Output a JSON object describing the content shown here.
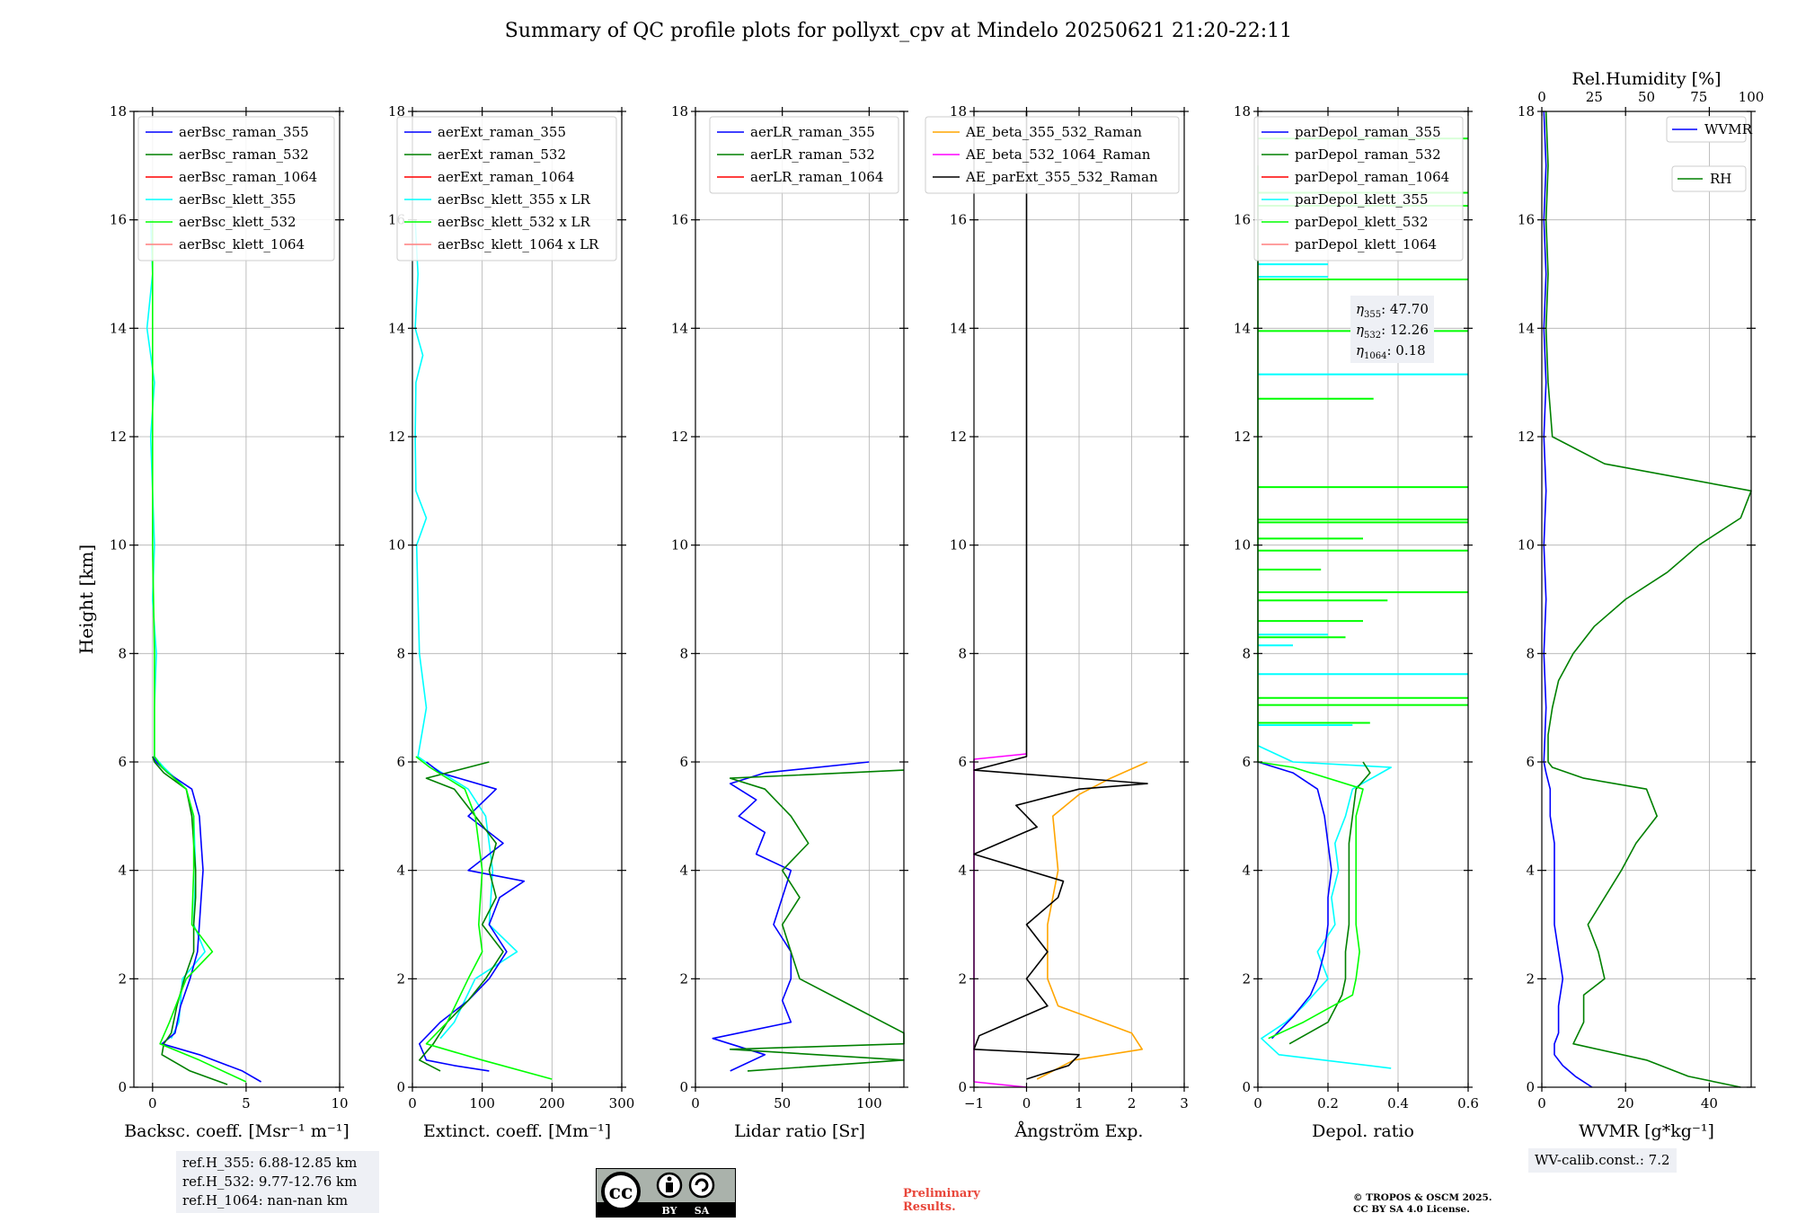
{
  "title": "Summary of QC profile plots for pollyxt_cpv at Mindelo 20250621 21:20-22:11",
  "ylabel": "Height [km]",
  "yticks": [
    0,
    2,
    4,
    6,
    8,
    10,
    12,
    14,
    16,
    18
  ],
  "colors": {
    "c355_raman": "#0000ff",
    "c532_raman": "#008000",
    "c1064_raman": "#ff0000",
    "c355_klett": "#00ffff",
    "c532_klett": "#00ff00",
    "c1064_klett": "#ff7f7f",
    "ae_beta_355_532": "#ffa500",
    "ae_beta_532_1064": "#ff00ff",
    "ae_parext": "#000000",
    "box_bg": "#eef0f5",
    "prelim": "#e8463a"
  },
  "chart_data": [
    {
      "type": "line",
      "xlabel": "Backsc. coeff. [Msr⁻¹ m⁻¹]",
      "xlim": [
        -1,
        10
      ],
      "xticks": [
        0,
        5,
        10
      ],
      "ylim": [
        0,
        18
      ],
      "legend": [
        "aerBsc_raman_355",
        "aerBsc_raman_532",
        "aerBsc_raman_1064",
        "aerBsc_klett_355",
        "aerBsc_klett_532",
        "aerBsc_klett_1064"
      ],
      "legend_placement": "top-right",
      "series": [
        {
          "name": "aerBsc_klett_355",
          "color": "c355_klett",
          "y": [
            0.9,
            1.2,
            2.0,
            2.5,
            3.0,
            4.0,
            5.0,
            5.5,
            5.9,
            6.1,
            7,
            8,
            9,
            10,
            11,
            12,
            13,
            14,
            15,
            16
          ],
          "x": [
            1.0,
            1.4,
            1.6,
            2.8,
            2.2,
            2.3,
            2.2,
            1.8,
            0.6,
            0.1,
            0.1,
            0.2,
            0.0,
            0.1,
            0.0,
            -0.1,
            0.1,
            -0.3,
            0.0,
            -0.1
          ]
        },
        {
          "name": "aerBsc_raman_355",
          "color": "c355_raman",
          "y": [
            0.1,
            0.3,
            0.6,
            0.8,
            1.0,
            1.5,
            2.0,
            2.5,
            3.0,
            3.5,
            4.0,
            4.5,
            5.0,
            5.5,
            5.8,
            6.0,
            6.1
          ],
          "x": [
            5.8,
            4.8,
            2.5,
            0.5,
            1.2,
            1.5,
            2.0,
            2.4,
            2.5,
            2.6,
            2.7,
            2.6,
            2.5,
            2.1,
            0.8,
            0.2,
            0.0
          ]
        },
        {
          "name": "aerBsc_raman_532",
          "color": "c532_raman",
          "y": [
            0.05,
            0.3,
            0.6,
            0.8,
            1.0,
            1.5,
            2.0,
            2.5,
            3.0,
            3.5,
            4.0,
            4.5,
            5.0,
            5.5,
            5.8,
            6.0,
            6.1
          ],
          "x": [
            4.0,
            2.0,
            0.5,
            0.6,
            1.0,
            1.3,
            1.7,
            2.2,
            2.2,
            2.3,
            2.3,
            2.2,
            2.1,
            1.8,
            0.6,
            0.1,
            0.0
          ]
        },
        {
          "name": "aerBsc_klett_532",
          "color": "c532_klett",
          "y": [
            0.1,
            0.5,
            0.8,
            1.2,
            2.0,
            2.5,
            3.0,
            4.0,
            5.0,
            5.5,
            5.9,
            6.1,
            8,
            10,
            12,
            14,
            16
          ],
          "x": [
            5.0,
            2.5,
            0.4,
            0.9,
            1.8,
            3.2,
            2.1,
            2.2,
            2.2,
            1.8,
            0.5,
            0.1,
            0.1,
            0.0,
            0.0,
            0.0,
            0.0
          ]
        }
      ]
    },
    {
      "type": "line",
      "xlabel": "Extinct. coeff. [Mm⁻¹]",
      "xlim": [
        0,
        300
      ],
      "xticks": [
        0,
        100,
        200,
        300
      ],
      "ylim": [
        0,
        18
      ],
      "legend": [
        "aerExt_raman_355",
        "aerExt_raman_532",
        "aerExt_raman_1064",
        "aerBsc_klett_355 x LR",
        "aerBsc_klett_532 x LR",
        "aerBsc_klett_1064 x LR"
      ],
      "legend_placement": "top-right",
      "series": [
        {
          "name": "aerBsc_klett_355 x LR",
          "color": "c355_klett",
          "y": [
            0.9,
            1.2,
            2.0,
            2.5,
            3.0,
            4.0,
            5.0,
            5.5,
            5.9,
            6.1,
            7,
            8,
            9,
            10,
            10.5,
            11,
            12,
            13,
            13.5,
            14,
            15,
            16
          ],
          "x": [
            40,
            60,
            90,
            150,
            110,
            115,
            105,
            80,
            30,
            8,
            20,
            10,
            8,
            6,
            20,
            5,
            4,
            5,
            15,
            4,
            8,
            4
          ]
        },
        {
          "name": "aerExt_raman_355",
          "color": "c355_raman",
          "y": [
            0.3,
            0.4,
            0.5,
            0.8,
            1.2,
            1.6,
            2.0,
            2.5,
            3.0,
            3.5,
            3.8,
            4.0,
            4.5,
            5.0,
            5.5,
            5.8,
            6.0
          ],
          "x": [
            110,
            60,
            20,
            10,
            40,
            80,
            110,
            135,
            110,
            125,
            160,
            80,
            130,
            80,
            120,
            40,
            20
          ]
        },
        {
          "name": "aerExt_raman_532",
          "color": "c532_raman",
          "y": [
            0.3,
            0.5,
            0.8,
            1.2,
            1.6,
            2.0,
            2.5,
            3.0,
            3.5,
            4.0,
            4.5,
            5.0,
            5.5,
            5.7,
            6.0
          ],
          "x": [
            40,
            10,
            30,
            50,
            80,
            105,
            130,
            100,
            120,
            110,
            120,
            90,
            60,
            20,
            110
          ]
        },
        {
          "name": "aerBsc_klett_532 x LR",
          "color": "c532_klett",
          "y": [
            0.15,
            0.5,
            0.8,
            1.2,
            2.0,
            2.5,
            3.0,
            4.0,
            5.0,
            5.5,
            5.9,
            6.1
          ],
          "x": [
            200,
            100,
            20,
            50,
            80,
            100,
            95,
            100,
            90,
            75,
            25,
            5
          ]
        }
      ]
    },
    {
      "type": "line",
      "xlabel": "Lidar ratio [Sr]",
      "xlim": [
        0,
        120
      ],
      "xticks": [
        0,
        50,
        100
      ],
      "ylim": [
        0,
        18
      ],
      "legend": [
        "aerLR_raman_355",
        "aerLR_raman_532",
        "aerLR_raman_1064"
      ],
      "legend_placement": "top-right",
      "series": [
        {
          "name": "aerLR_raman_355",
          "color": "c355_raman",
          "y": [
            0.3,
            0.6,
            0.9,
            1.2,
            1.6,
            2.0,
            2.5,
            3.0,
            3.5,
            4.0,
            4.3,
            4.7,
            5.0,
            5.3,
            5.6,
            5.8,
            6.0
          ],
          "x": [
            20,
            40,
            10,
            55,
            50,
            55,
            55,
            45,
            50,
            55,
            35,
            40,
            25,
            35,
            20,
            40,
            100
          ]
        },
        {
          "name": "aerLR_raman_532",
          "color": "c532_raman",
          "y": [
            0.3,
            0.5,
            0.7,
            0.8,
            1.0,
            1.5,
            2.0,
            2.5,
            3.0,
            3.5,
            4.0,
            4.5,
            5.0,
            5.5,
            5.7,
            5.85
          ],
          "x": [
            30,
            120,
            20,
            120,
            120,
            90,
            60,
            55,
            50,
            60,
            50,
            65,
            55,
            40,
            20,
            120
          ]
        }
      ]
    },
    {
      "type": "line",
      "xlabel": "Ångström Exp.",
      "xlim": [
        -1,
        3
      ],
      "xticks": [
        -1,
        0,
        1,
        2,
        3
      ],
      "ylim": [
        0,
        18
      ],
      "legend": [
        "AE_beta_355_532_Raman",
        "AE_beta_532_1064_Raman",
        "AE_parExt_355_532_Raman"
      ],
      "legend_placement": "top-right",
      "series": [
        {
          "name": "AE_beta_355_532_Raman",
          "color": "ae_beta_355_532",
          "y": [
            0.15,
            0.5,
            0.7,
            1.0,
            1.5,
            2.0,
            3.0,
            4.0,
            5.0,
            5.4,
            5.7,
            6.0
          ],
          "x": [
            0.2,
            0.9,
            2.2,
            2.0,
            0.6,
            0.4,
            0.4,
            0.6,
            0.5,
            1.0,
            1.6,
            2.3
          ]
        },
        {
          "name": "AE_beta_532_1064_Raman",
          "color": "ae_beta_532_1064",
          "y": [
            0.0,
            0.1,
            6.05,
            6.15
          ],
          "x": [
            0.0,
            -1.0,
            -1.0,
            0.0
          ]
        },
        {
          "name": "AE_parExt_355_532_Raman",
          "color": "ae_parext",
          "y": [
            0.15,
            0.4,
            0.6,
            0.7,
            0.95,
            1.5,
            2.0,
            2.5,
            3.0,
            3.5,
            3.8,
            4.3,
            4.8,
            5.2,
            5.5,
            5.6,
            5.85,
            6.1,
            18
          ],
          "x": [
            0.0,
            0.8,
            1.0,
            -1.0,
            -0.9,
            0.4,
            0.0,
            0.4,
            0.0,
            0.6,
            0.7,
            -1.0,
            0.2,
            -0.2,
            1.0,
            2.3,
            -1.0,
            0.0,
            0.0
          ]
        }
      ]
    },
    {
      "type": "line",
      "xlabel": "Depol. ratio",
      "xlim": [
        0,
        0.6
      ],
      "xticks": [
        0,
        0.2,
        0.4,
        0.6
      ],
      "ylim": [
        0,
        18
      ],
      "legend": [
        "parDepol_raman_355",
        "parDepol_raman_532",
        "parDepol_raman_1064",
        "parDepol_klett_355",
        "parDepol_klett_532",
        "parDepol_klett_1064"
      ],
      "legend_placement": "top-right",
      "annotations": [
        {
          "symbol": "η",
          "sub": "355",
          "value": "47.70"
        },
        {
          "symbol": "η",
          "sub": "532",
          "value": "12.26"
        },
        {
          "symbol": "η",
          "sub": "1064",
          "value": "0.18"
        }
      ],
      "series": [
        {
          "name": "parDepol_klett_355",
          "color": "c355_klett",
          "y": [
            0.35,
            0.6,
            0.9,
            1.2,
            1.5,
            2.0,
            2.5,
            3.0,
            3.5,
            4.0,
            4.5,
            5.0,
            5.5,
            5.9,
            6.0,
            6.3
          ],
          "x": [
            0.38,
            0.06,
            0.01,
            0.08,
            0.13,
            0.2,
            0.17,
            0.22,
            0.21,
            0.23,
            0.22,
            0.25,
            0.27,
            0.38,
            0.1,
            0.0
          ]
        },
        {
          "name": "parDepol_raman_355",
          "color": "c355_raman",
          "y": [
            0.9,
            1.3,
            1.7,
            2.0,
            2.5,
            3.0,
            3.5,
            4.0,
            4.5,
            5.0,
            5.5,
            5.8,
            6.0
          ],
          "x": [
            0.04,
            0.1,
            0.15,
            0.17,
            0.19,
            0.2,
            0.2,
            0.21,
            0.2,
            0.19,
            0.17,
            0.1,
            0.0
          ]
        },
        {
          "name": "parDepol_raman_532",
          "color": "c532_raman",
          "y": [
            0.8,
            1.2,
            1.7,
            2.0,
            2.5,
            3.0,
            3.5,
            4.0,
            4.5,
            5.0,
            5.5,
            5.8,
            6.0
          ],
          "x": [
            0.09,
            0.2,
            0.24,
            0.25,
            0.25,
            0.26,
            0.26,
            0.26,
            0.26,
            0.27,
            0.28,
            0.32,
            0.3
          ]
        },
        {
          "name": "parDepol_klett_532",
          "color": "c532_klett",
          "y": [
            0.9,
            1.2,
            1.7,
            2.0,
            2.5,
            3.0,
            3.5,
            4.0,
            4.5,
            5.0,
            5.5,
            5.9,
            6.0,
            6.5,
            7,
            8,
            9,
            10,
            11,
            12,
            13,
            14,
            15,
            16,
            17
          ],
          "x": [
            0.03,
            0.13,
            0.27,
            0.28,
            0.29,
            0.28,
            0.28,
            0.28,
            0.28,
            0.28,
            0.3,
            0.1,
            0.0,
            0.0,
            0.0,
            0.0,
            0.0,
            0.0,
            0.0,
            0.0,
            0.0,
            0.0,
            0.0,
            0.0,
            0.0
          ]
        }
      ],
      "spikes": [
        {
          "color": "c532_klett",
          "heights": [
            6.72,
            7.05,
            7.18,
            8.3,
            8.6,
            8.98,
            9.13,
            9.55,
            9.9,
            10.12,
            10.42,
            10.47,
            11.07,
            12.7,
            13.95,
            14.9,
            16.26,
            16.5,
            17.5
          ],
          "x": [
            0.32,
            0.6,
            0.6,
            0.25,
            0.3,
            0.37,
            0.6,
            0.18,
            0.6,
            0.3,
            0.6,
            0.6,
            0.6,
            0.33,
            0.6,
            0.6,
            0.6,
            0.6,
            0.6
          ]
        },
        {
          "color": "c355_klett",
          "heights": [
            6.68,
            7.62,
            8.15,
            8.35,
            13.15,
            14.95,
            15.18
          ],
          "x": [
            0.27,
            0.6,
            0.1,
            0.2,
            0.6,
            0.2,
            0.2
          ]
        }
      ]
    },
    {
      "type": "line",
      "xlabel": "WVMR [g*kg⁻¹]",
      "xlim": [
        0,
        50
      ],
      "xticks": [
        0,
        20,
        40
      ],
      "ylim": [
        0,
        18
      ],
      "top_axis": {
        "label": "Rel.Humidity [%]",
        "lim": [
          0,
          100
        ],
        "ticks": [
          0,
          25,
          50,
          75,
          100
        ]
      },
      "legend": [
        "WVMR",
        "RH"
      ],
      "legend_placement": "top-right",
      "series": [
        {
          "name": "WVMR",
          "color": "c355_raman",
          "y": [
            0.0,
            0.2,
            0.4,
            0.6,
            0.8,
            1.0,
            1.5,
            2.0,
            2.5,
            3.0,
            3.5,
            4.0,
            4.5,
            5.0,
            5.5,
            5.8,
            6.0,
            7,
            8,
            9,
            10,
            11,
            12,
            13,
            14,
            15,
            16,
            17,
            18
          ],
          "x": [
            12,
            8,
            5,
            3,
            3,
            4,
            4,
            5,
            4,
            3,
            3,
            3,
            3,
            2,
            2,
            1,
            0.5,
            1,
            0.5,
            1,
            0.5,
            1,
            0.5,
            1,
            0.5,
            1,
            0.5,
            1,
            0.5
          ]
        },
        {
          "name": "RH",
          "color": "c532_raman",
          "axis": "top",
          "y": [
            0.0,
            0.2,
            0.5,
            0.8,
            1.2,
            1.7,
            2.0,
            2.5,
            3.0,
            3.5,
            4.0,
            4.5,
            5.0,
            5.5,
            5.7,
            5.9,
            6.0,
            6.5,
            7,
            7.5,
            8,
            8.5,
            9,
            9.5,
            10,
            10.5,
            11,
            11.5,
            12,
            13,
            14,
            15,
            16,
            17,
            18
          ],
          "x": [
            95,
            70,
            50,
            15,
            20,
            20,
            30,
            27,
            22,
            30,
            38,
            45,
            55,
            50,
            20,
            5,
            3,
            3,
            5,
            8,
            15,
            25,
            40,
            60,
            75,
            95,
            100,
            30,
            5,
            3,
            2,
            3,
            2,
            3,
            2
          ]
        }
      ]
    }
  ],
  "ref_box": [
    "ref.H_355: 6.88-12.85 km",
    "ref.H_532: 9.77-12.76 km",
    "ref.H_1064: nan-nan km"
  ],
  "wv_box": "WV-calib.const.: 7.2",
  "license_logo": {
    "cc": "cc",
    "by": "BY",
    "sa": "SA"
  },
  "prelim": [
    "Preliminary",
    "Results."
  ],
  "copyright": [
    "© TROPOS & OSCM 2025.",
    "CC BY SA 4.0 License."
  ]
}
